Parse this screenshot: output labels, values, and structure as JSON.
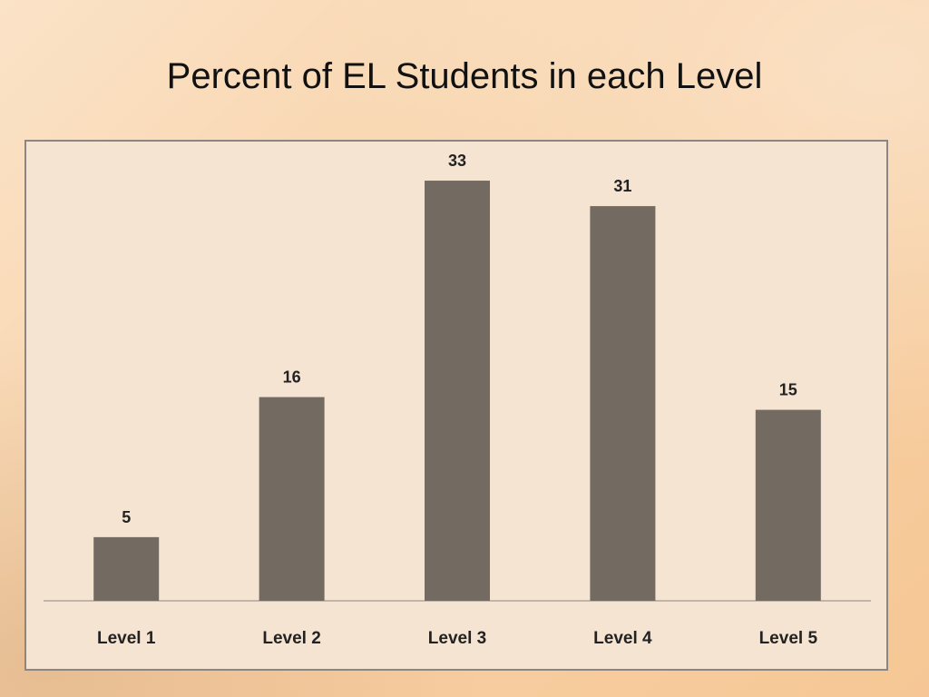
{
  "slide": {
    "title": "Percent of EL Students in each Level"
  },
  "chart_data": {
    "type": "bar",
    "categories": [
      "Level 1",
      "Level 2",
      "Level 3",
      "Level 4",
      "Level 5"
    ],
    "values": [
      5,
      16,
      33,
      31,
      15
    ],
    "data_labels": [
      "5",
      "16",
      "33",
      "31",
      "15"
    ],
    "title": "",
    "xlabel": "",
    "ylabel": "",
    "ylim": [
      0,
      35
    ],
    "grid": false,
    "legend": "none",
    "colors": {
      "bar": "#736a62",
      "axis": "#8c8580",
      "panel": "#f6e4d2"
    }
  }
}
